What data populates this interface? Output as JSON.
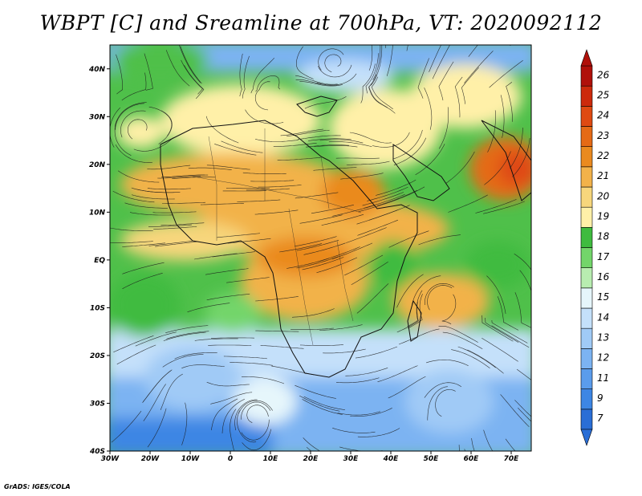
{
  "title": "WBPT [C] and Sreamline at 700hPa, VT: 2020092112",
  "credit": "GrADS: IGES/COLA",
  "map": {
    "lon_range": [
      -30,
      75
    ],
    "lat_range": [
      -40,
      45
    ],
    "lat_ticks": [
      {
        "value": 40,
        "label": "40N"
      },
      {
        "value": 30,
        "label": "30N"
      },
      {
        "value": 20,
        "label": "20N"
      },
      {
        "value": 10,
        "label": "10N"
      },
      {
        "value": 0,
        "label": "EQ"
      },
      {
        "value": -10,
        "label": "10S"
      },
      {
        "value": -20,
        "label": "20S"
      },
      {
        "value": -30,
        "label": "30S"
      },
      {
        "value": -40,
        "label": "40S"
      }
    ],
    "lon_ticks": [
      {
        "value": -30,
        "label": "30W"
      },
      {
        "value": -20,
        "label": "20W"
      },
      {
        "value": -10,
        "label": "10W"
      },
      {
        "value": 0,
        "label": "0"
      },
      {
        "value": 10,
        "label": "10E"
      },
      {
        "value": 20,
        "label": "20E"
      },
      {
        "value": 30,
        "label": "30E"
      },
      {
        "value": 40,
        "label": "40E"
      },
      {
        "value": 50,
        "label": "50E"
      },
      {
        "value": 60,
        "label": "60E"
      },
      {
        "value": 70,
        "label": "70E"
      }
    ]
  },
  "colorbar": {
    "labels": [
      "7",
      "9",
      "11",
      "12",
      "13",
      "14",
      "15",
      "16",
      "17",
      "18",
      "19",
      "20",
      "21",
      "22",
      "23",
      "24",
      "25",
      "26"
    ],
    "colors": [
      "#2a6ed6",
      "#3d86e4",
      "#5a9cec",
      "#7cb3f2",
      "#a0caf6",
      "#c4e0fa",
      "#e6f6fb",
      "#b8edb0",
      "#73d56a",
      "#3fbb3f",
      "#fff0a8",
      "#f7d67c",
      "#f2b24a",
      "#ea8a1f",
      "#e56a16",
      "#df4a12",
      "#cc2a0c",
      "#b0100a"
    ]
  }
}
